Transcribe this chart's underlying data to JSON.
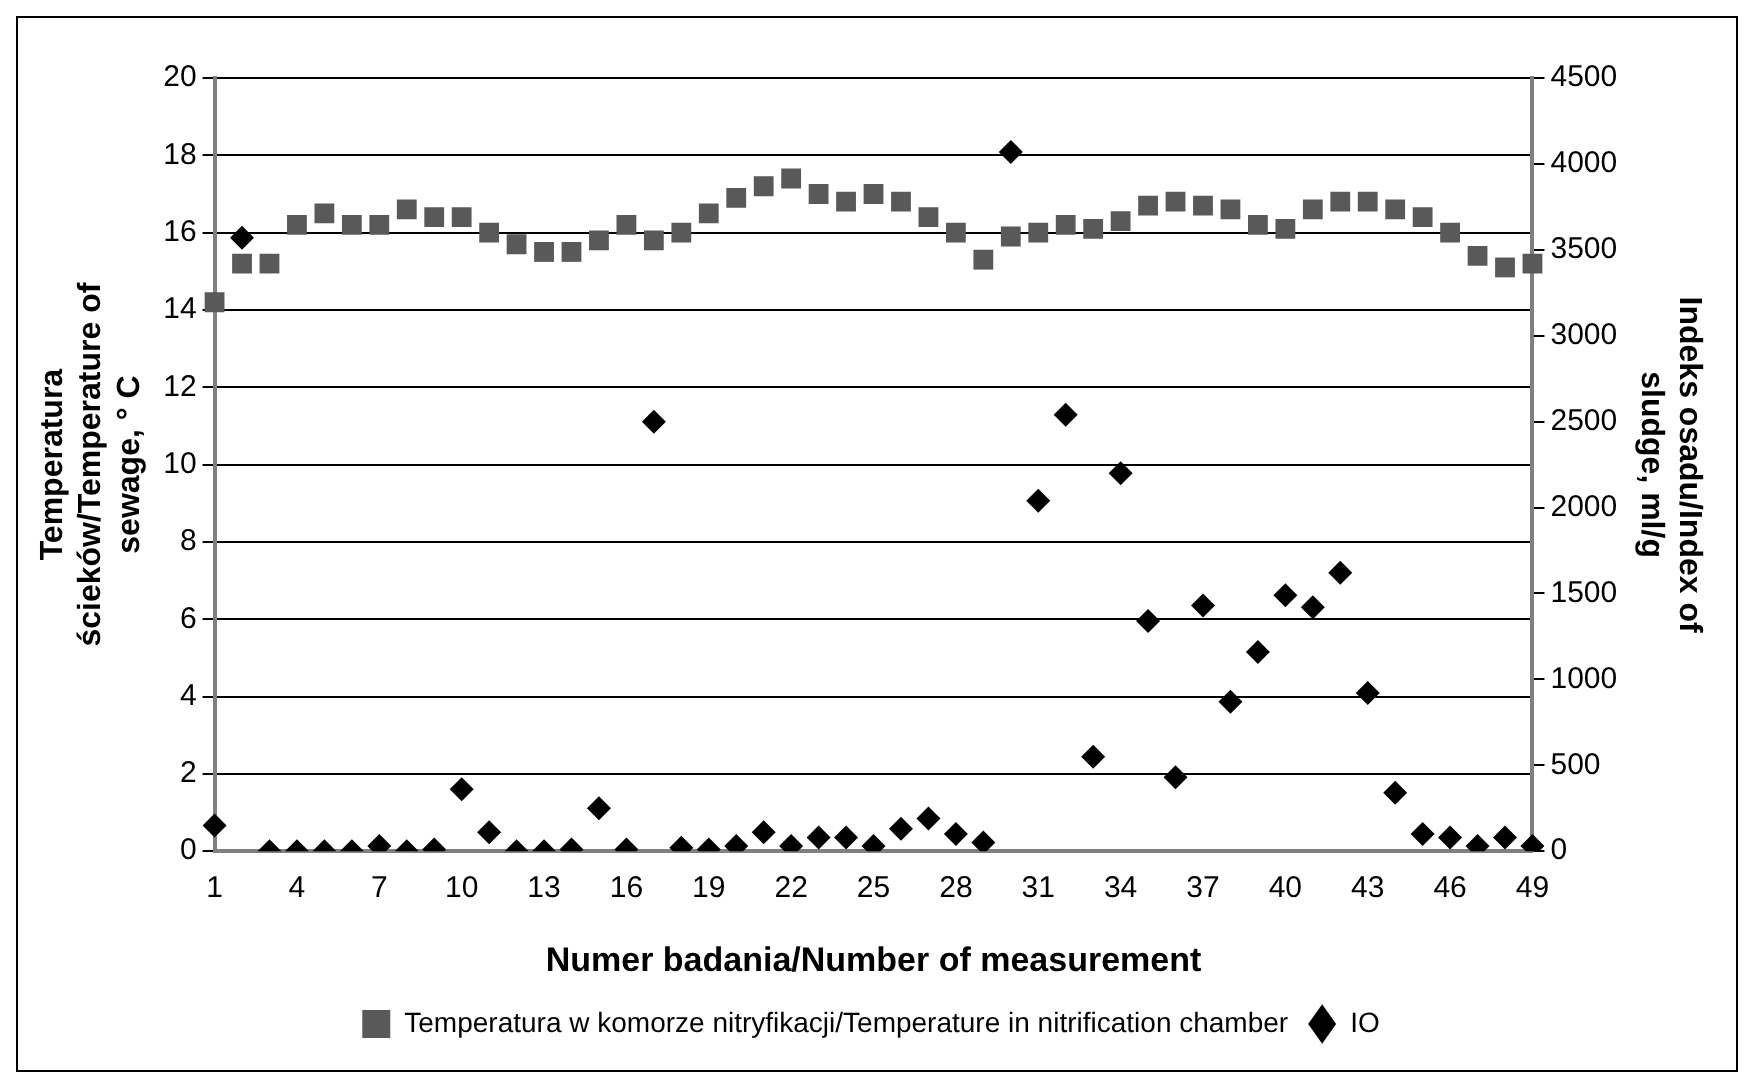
{
  "chart_data": {
    "type": "scatter",
    "xlabel": "Numer badania/Number of measurement",
    "ylabel": "Temperatura ścieków/Temperature of sewage, ° C",
    "y2label": "Indeks osadu/Index of sludge, ml/g",
    "categories": [
      "1",
      null,
      null,
      "4",
      null,
      null,
      "7",
      null,
      null,
      "10",
      null,
      null,
      "13",
      null,
      null,
      "16",
      null,
      null,
      "19",
      null,
      null,
      "22",
      null,
      null,
      "25",
      null,
      null,
      "28",
      null,
      null,
      "31",
      null,
      null,
      "34",
      null,
      null,
      "37",
      null,
      null,
      "40",
      null,
      null,
      "43",
      null,
      null,
      "46",
      null,
      null,
      "49"
    ],
    "ylim": [
      0,
      20
    ],
    "yticks": [
      0,
      2,
      4,
      6,
      8,
      10,
      12,
      14,
      16,
      18,
      20
    ],
    "y2lim": [
      0,
      4500
    ],
    "y2ticks": [
      0,
      500,
      1000,
      1500,
      2000,
      2500,
      3000,
      3500,
      4000,
      4500
    ],
    "grid": "y",
    "legend": "bottom",
    "series": [
      {
        "name": "Temperatura w komorze nitryfikacji/Temperature in nitrification chamber",
        "color": "#595959",
        "marker": "square",
        "values": [
          14.2,
          15.2,
          15.2,
          16.2,
          16.5,
          16.2,
          16.2,
          16.6,
          16.4,
          16.4,
          16.0,
          15.7,
          15.5,
          15.5,
          15.8,
          16.2,
          15.8,
          16.0,
          16.5,
          16.9,
          17.2,
          17.4,
          17.0,
          16.8,
          17.0,
          16.8,
          16.4,
          16.0,
          15.3,
          15.9,
          16.0,
          16.2,
          16.1,
          16.3,
          16.7,
          16.8,
          16.7,
          16.6,
          16.2,
          16.1,
          16.6,
          16.8,
          16.8,
          16.6,
          16.4,
          16.0,
          15.4,
          15.1,
          15.2
        ]
      },
      {
        "name": "IO",
        "color": "#000000",
        "marker": "diamond",
        "axis": "y2",
        "values": [
          150,
          3570,
          0,
          0,
          0,
          0,
          30,
          0,
          10,
          360,
          110,
          0,
          0,
          10,
          250,
          10,
          2500,
          20,
          10,
          30,
          110,
          30,
          80,
          80,
          30,
          130,
          190,
          100,
          50,
          4070,
          2040,
          2540,
          550,
          2200,
          1340,
          430,
          1430,
          870,
          1160,
          1490,
          1420,
          1620,
          920,
          340,
          100,
          80,
          30,
          80,
          30
        ]
      }
    ]
  }
}
